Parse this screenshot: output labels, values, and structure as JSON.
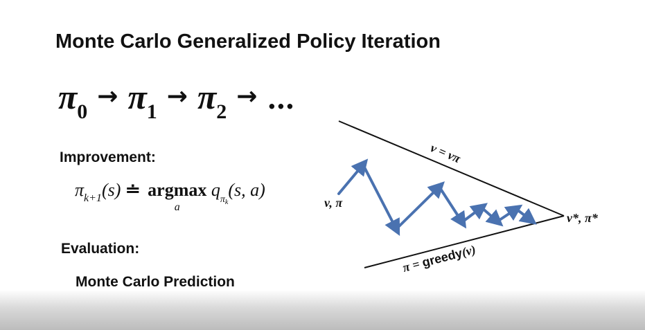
{
  "title": "Monte Carlo Generalized Policy Iteration",
  "sequence": {
    "symbol": "π",
    "indices": [
      "0",
      "1",
      "2"
    ],
    "arrow": "→",
    "ellipsis": "…"
  },
  "improvement": {
    "heading": "Improvement:",
    "lhs_symbol": "π",
    "lhs_index": "k+1",
    "lhs_arg": "(s)",
    "relation": "≐",
    "operator": "argmax",
    "operator_sub": "a",
    "q_symbol": "q",
    "q_sub_symbol": "π",
    "q_sub_index": "k",
    "q_args": "(s, a)"
  },
  "evaluation": {
    "heading": "Evaluation:",
    "method": "Monte Carlo Prediction"
  },
  "diagram": {
    "start_label": "v, π",
    "end_label": "v*, π*",
    "top_line_label": "v = vπ",
    "bottom_line_label_prefix": "π = ",
    "bottom_line_label_word": "greedy",
    "bottom_line_label_suffix": "(v)",
    "zigzag_color": "#4a72b0",
    "line_color": "#111111"
  }
}
